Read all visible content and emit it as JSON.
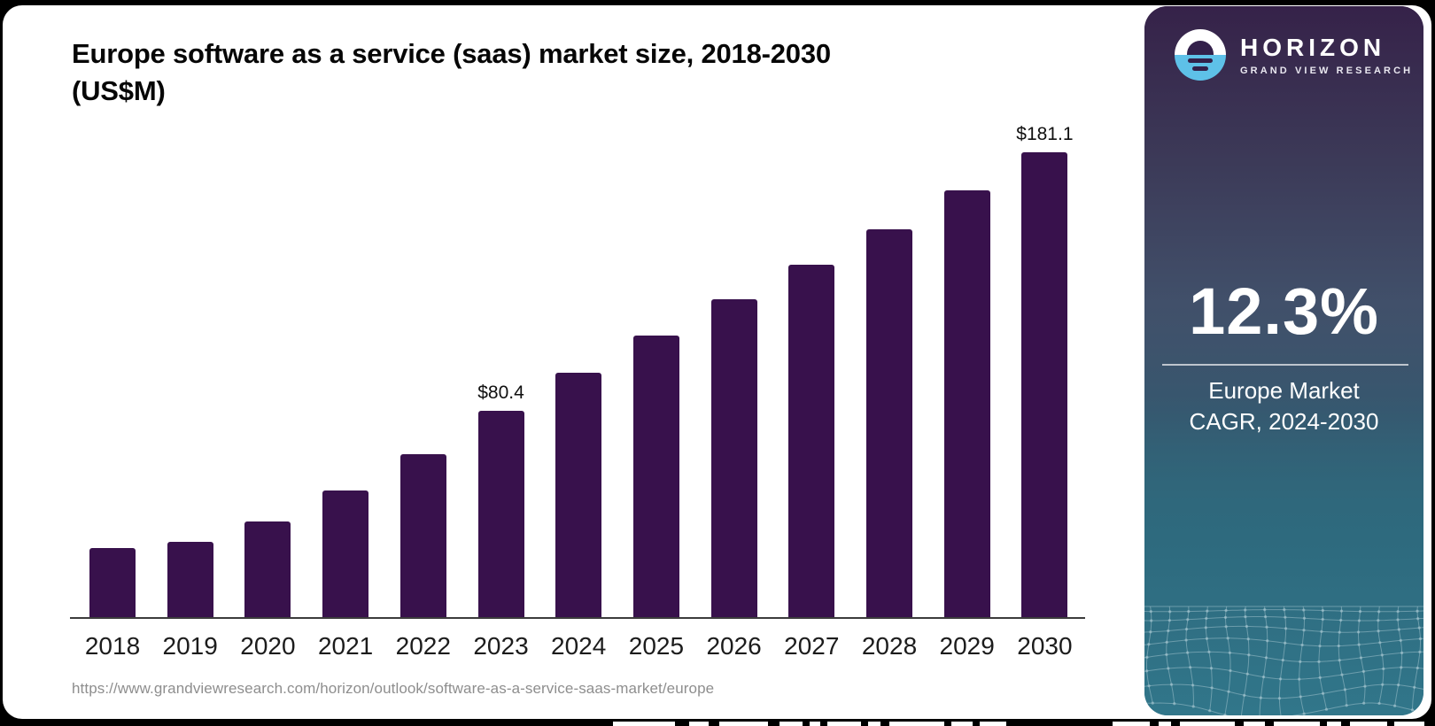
{
  "header": {
    "title_line1": "Europe software as a service (saas) market size, 2018-2030",
    "title_line2": "(US$M)"
  },
  "source": {
    "url_text": "https://www.grandviewresearch.com/horizon/outlook/software-as-a-service-saas-market/europe"
  },
  "chart_data": {
    "type": "bar",
    "title": "Europe software as a service (saas) market size, 2018-2030 (US$M)",
    "categories": [
      "2018",
      "2019",
      "2020",
      "2021",
      "2022",
      "2023",
      "2024",
      "2025",
      "2026",
      "2027",
      "2028",
      "2029",
      "2030"
    ],
    "values": [
      26.9,
      29.3,
      37.1,
      49.2,
      63.6,
      80.4,
      95.1,
      109.6,
      123.8,
      137.4,
      151.0,
      166.2,
      181.1
    ],
    "unit": "US$M",
    "data_labels": {
      "2023": "$80.4",
      "2030": "$181.1"
    },
    "bar_color": "#38114C",
    "axis_line_color": "#3c3c3c",
    "label_color": "#101010",
    "tick_color": "#1c1c1c",
    "ylim": [
      0,
      195
    ],
    "grid": false,
    "legend": "none"
  },
  "panel": {
    "brand_name": "HORIZON",
    "brand_subtitle": "GRAND VIEW RESEARCH",
    "stat_value": "12.3%",
    "stat_label_line1": "Europe Market",
    "stat_label_line2": "CAGR, 2024-2030",
    "colors": {
      "accent_blue": "#5EC1E8",
      "gradient_top": "#362249",
      "gradient_bottom": "#31768A",
      "mesh_line": "#a8c8d2"
    }
  }
}
